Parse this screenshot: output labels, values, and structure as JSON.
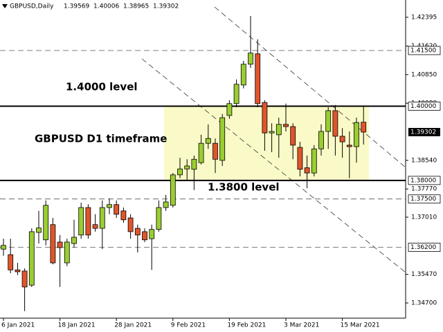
{
  "chart_data": {
    "type": "candlestick",
    "symbol": "GBPUSD,Daily",
    "annotations": [
      "1.4000 level",
      "GBPUSD D1 timeframe",
      "1.3800 level"
    ],
    "categories": [
      "6 Jan 2021",
      null,
      null,
      null,
      null,
      null,
      null,
      null,
      "18 Jan 2021",
      null,
      null,
      null,
      null,
      null,
      null,
      null,
      "28 Jan 2021",
      null,
      null,
      null,
      null,
      null,
      null,
      null,
      "9 Feb 2021",
      null,
      null,
      null,
      null,
      null,
      null,
      null,
      "19 Feb 2021",
      null,
      null,
      null,
      null,
      null,
      null,
      null,
      "3 Mar 2021",
      null,
      null,
      null,
      null,
      null,
      null,
      null,
      "15 Mar 2021",
      null,
      null,
      null
    ],
    "open": [
      1.3615,
      1.36,
      1.3559,
      1.3556,
      1.3518,
      1.366,
      1.364,
      1.3681,
      1.3634,
      1.3578,
      1.363,
      1.3653,
      1.3727,
      1.3681,
      1.3671,
      1.3727,
      1.3735,
      1.3718,
      1.3699,
      1.3671,
      1.3662,
      1.3643,
      1.3668,
      1.3727,
      1.3733,
      1.3815,
      1.3831,
      1.383,
      1.3848,
      1.39,
      1.39,
      1.3854,
      1.3975,
      1.4007,
      1.4057,
      1.4113,
      1.4141,
      1.401,
      1.3928,
      1.3923,
      1.3951,
      1.3945,
      1.3889,
      1.3834,
      1.382,
      1.3885,
      1.3932,
      1.3988,
      1.3919,
      1.3895,
      1.3891,
      1.39569
    ],
    "high": [
      1.3643,
      1.3643,
      1.3578,
      1.3563,
      1.3671,
      1.3718,
      1.3746,
      1.3699,
      1.3653,
      1.3643,
      1.3694,
      1.374,
      1.3736,
      1.3709,
      1.3746,
      1.3751,
      1.3746,
      1.3727,
      1.3709,
      1.3681,
      1.3671,
      1.3681,
      1.3746,
      1.3761,
      1.382,
      1.3861,
      1.3857,
      1.3867,
      1.3923,
      1.3951,
      1.3913,
      1.3979,
      1.4016,
      1.4072,
      1.4122,
      1.4243,
      1.418,
      1.4016,
      1.3954,
      1.3969,
      1.4007,
      1.3954,
      1.3904,
      1.3867,
      1.3895,
      1.3951,
      1.3997,
      1.4003,
      1.3941,
      1.3932,
      1.3969,
      1.40006
    ],
    "low": [
      1.3597,
      1.355,
      1.3545,
      1.3448,
      1.3513,
      1.363,
      1.3625,
      1.3574,
      1.3513,
      1.3569,
      1.3619,
      1.3643,
      1.3643,
      1.3662,
      1.3615,
      1.3709,
      1.3699,
      1.3686,
      1.3643,
      1.3606,
      1.3634,
      1.3559,
      1.3662,
      1.3718,
      1.3727,
      1.3806,
      1.3798,
      1.3774,
      1.3843,
      1.3885,
      1.382,
      1.3839,
      1.3966,
      1.3997,
      1.4048,
      1.4103,
      1.3997,
      1.388,
      1.3876,
      1.3861,
      1.3932,
      1.3857,
      1.3811,
      1.3779,
      1.3811,
      1.3867,
      1.3885,
      1.3867,
      1.3861,
      1.3806,
      1.3848,
      1.38965
    ],
    "close": [
      1.3625,
      1.3559,
      1.3554,
      1.3513,
      1.3662,
      1.3672,
      1.3733,
      1.3578,
      1.3619,
      1.3634,
      1.3647,
      1.3727,
      1.3653,
      1.3671,
      1.3727,
      1.3735,
      1.3709,
      1.3694,
      1.3662,
      1.3653,
      1.364,
      1.3668,
      1.3727,
      1.3742,
      1.3815,
      1.3831,
      1.3839,
      1.3857,
      1.39,
      1.3913,
      1.3857,
      1.3969,
      1.4007,
      1.4059,
      1.4113,
      1.4143,
      1.4007,
      1.3928,
      1.3932,
      1.3951,
      1.3945,
      1.3895,
      1.383,
      1.382,
      1.3885,
      1.3932,
      1.3988,
      1.3919,
      1.3904,
      1.3891,
      1.3956,
      1.39302
    ],
    "up_color": "#9acd32",
    "down_color": "#e0552b",
    "ylim": [
      1.3429,
      1.4286
    ],
    "yticks": [
      {
        "value": 1.347,
        "label": "1.34700"
      },
      {
        "value": 1.3547,
        "label": "1.35470"
      },
      {
        "value": 1.3701,
        "label": "1.37010"
      },
      {
        "value": 1.3777,
        "label": "1.37770"
      },
      {
        "value": 1.3854,
        "label": "1.38540"
      },
      {
        "value": 1.4008,
        "label": "1.40080"
      },
      {
        "value": 1.4085,
        "label": "1.40850"
      },
      {
        "value": 1.4162,
        "label": "1.41620"
      },
      1.42395
    ],
    "levels": [
      {
        "value": 1.415,
        "label": "1.41500",
        "style": "dashed"
      },
      {
        "value": 1.4,
        "label": "1.40000",
        "style": "solid"
      },
      {
        "value": 1.38,
        "label": "1.38000",
        "style": "solid"
      },
      {
        "value": 1.375,
        "label": "1.37500",
        "style": "dashed"
      },
      {
        "value": 1.362,
        "label": "1.36200",
        "style": "dashed"
      }
    ]
  }
}
